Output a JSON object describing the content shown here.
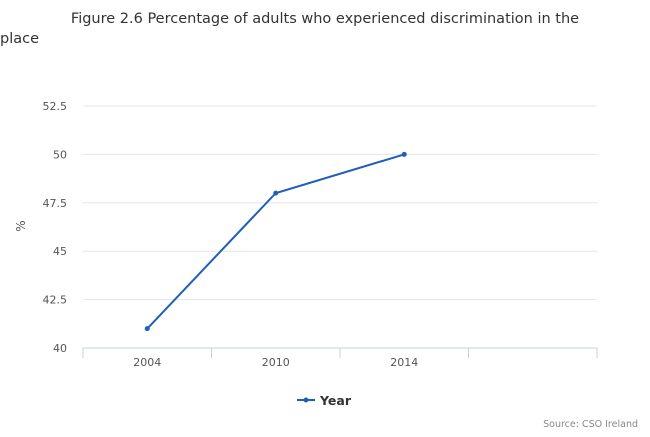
{
  "chart_data": {
    "type": "line",
    "title_line1": "Figure 2.6 Percentage of adults who experienced discrimination in the",
    "title_line2": "place",
    "ylabel": "%",
    "xlabel": "",
    "categories": [
      "2004",
      "2010",
      "2014",
      ""
    ],
    "series": [
      {
        "name": "Year",
        "values": [
          41,
          48,
          50,
          null
        ],
        "color": "#1f5fba"
      }
    ],
    "ylim": [
      40,
      52.5
    ],
    "yticks": [
      "40",
      "42.5",
      "45",
      "47.5",
      "50",
      "52.5"
    ],
    "ytick_values": [
      40,
      42.5,
      45,
      47.5,
      50,
      52.5
    ],
    "grid": true,
    "legend_position": "bottom-center",
    "source": "Source: CSO Ireland"
  },
  "colors": {
    "grid": "#e6e6e6",
    "axis": "#c0d0e0",
    "text": "#333333",
    "tick_text": "#555555",
    "source": "#888888"
  }
}
